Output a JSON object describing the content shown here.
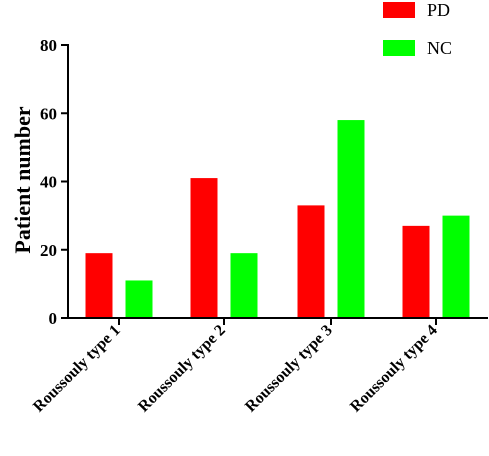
{
  "chart_data": {
    "type": "bar",
    "title": "",
    "xlabel": "",
    "ylabel": "Patient number",
    "ylim": [
      0,
      80
    ],
    "yticks": [
      0,
      20,
      40,
      60,
      80
    ],
    "categories": [
      "Roussouly type 1",
      "Roussouly type 2",
      "Roussouly type 3",
      "Roussouly type 4"
    ],
    "series": [
      {
        "name": "PD",
        "color": "#ff0000",
        "values": [
          19,
          41,
          33,
          27
        ]
      },
      {
        "name": "NC",
        "color": "#00ff00",
        "values": [
          11,
          19,
          58,
          30
        ]
      }
    ],
    "grid": false,
    "legend_position": "top-right"
  }
}
